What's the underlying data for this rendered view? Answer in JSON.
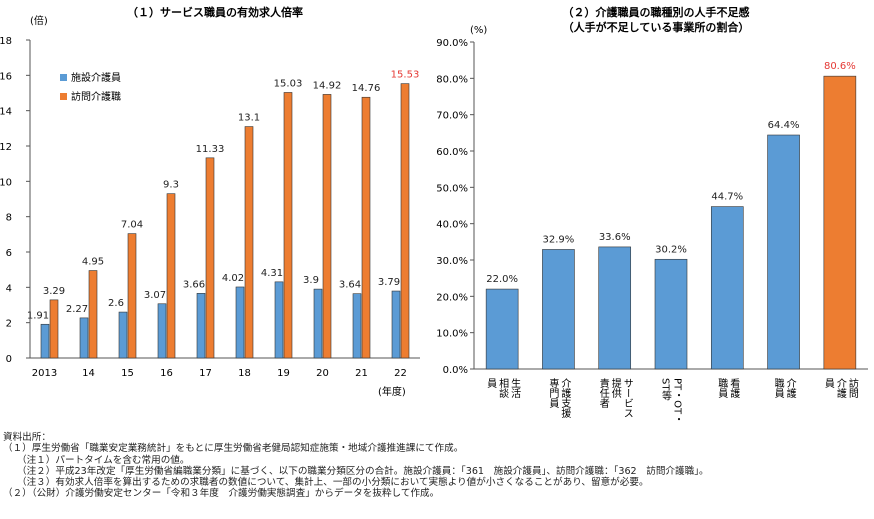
{
  "chart_data": [
    {
      "type": "bar",
      "title": "（１）サービス職員の有効求人倍率",
      "ylabel": "(倍)",
      "xlabel": "(年度)",
      "ylim": [
        0,
        18
      ],
      "yticks": [
        0,
        2,
        4,
        6,
        8,
        10,
        12,
        14,
        16,
        18
      ],
      "categories": [
        "2013",
        "14",
        "15",
        "16",
        "17",
        "18",
        "19",
        "20",
        "21",
        "22"
      ],
      "series": [
        {
          "name": "施設介護員",
          "color": "#5b9bd5",
          "values": [
            1.91,
            2.27,
            2.6,
            3.07,
            3.66,
            4.02,
            4.31,
            3.9,
            3.64,
            3.79
          ],
          "labels": [
            "1.91",
            "2.27",
            "2.6",
            "3.07",
            "3.66",
            "4.02",
            "4.31",
            "3.9",
            "3.64",
            "3.79"
          ]
        },
        {
          "name": "訪問介護職",
          "color": "#ed7d31",
          "values": [
            3.29,
            4.95,
            7.04,
            9.3,
            11.33,
            13.1,
            15.03,
            14.92,
            14.76,
            15.53
          ],
          "labels": [
            "3.29",
            "4.95",
            "7.04",
            "9.3",
            "11.33",
            "13.1",
            "15.03",
            "14.92",
            "14.76",
            "15.53"
          ]
        }
      ],
      "highlight_color": "#e53935",
      "legend": "top-left"
    },
    {
      "type": "bar",
      "title": "（２）介護職員の職種別の人手不足感",
      "subtitle": "（人手が不足している事業所の割合）",
      "ylabel": "(%)",
      "ylim": [
        0,
        90
      ],
      "yticks": [
        0,
        10,
        20,
        30,
        40,
        50,
        60,
        70,
        80,
        90
      ],
      "ytick_labels": [
        "0.0%",
        "10.0%",
        "20.0%",
        "30.0%",
        "40.0%",
        "50.0%",
        "60.0%",
        "70.0%",
        "80.0%",
        "90.0%"
      ],
      "categories": [
        "生活相談員",
        "介護支援専門員",
        "サービス提供責任者",
        "PT・OT・ST等",
        "看護職員",
        "介護職員",
        "訪問介護員"
      ],
      "category_lines": [
        [
          "生活",
          "相談",
          "員"
        ],
        [
          "介護支援",
          "専門員"
        ],
        [
          "サービス",
          "提供",
          "責任者"
        ],
        [
          "PT・OT・",
          "ST等"
        ],
        [
          "看護",
          "職員"
        ],
        [
          "介護",
          "職員"
        ],
        [
          "訪問",
          "介護",
          "員"
        ]
      ],
      "values": [
        22.0,
        32.9,
        33.6,
        30.2,
        44.7,
        64.4,
        80.6
      ],
      "labels": [
        "22.0%",
        "32.9%",
        "33.6%",
        "30.2%",
        "44.7%",
        "64.4%",
        "80.6%"
      ],
      "colors": [
        "#5b9bd5",
        "#5b9bd5",
        "#5b9bd5",
        "#5b9bd5",
        "#5b9bd5",
        "#5b9bd5",
        "#ed7d31"
      ],
      "highlight_label_color": "#e53935"
    }
  ],
  "notes": {
    "heading": "資料出所：",
    "items": [
      "（１）厚生労働省「職業安定業務統計」をもとに厚生労働省老健局認知症施策・地域介護推進課にて作成。",
      "（注１）パートタイムを含む常用の値。",
      "（注２）平成23年改定「厚生労働省編職業分類」に基づく、以下の職業分類区分の合計。施設介護員：「361　施設介護員」、訪問介護職：「362　訪問介護職」。",
      "（注３）有効求人倍率を算出するための求職者の数値について、集計上、一部の小分類において実態より値が小さくなることがあり、留意が必要。",
      "（２）（公財）介護労働安定センター「令和３年度　介護労働実態調査」からデータを抜粋して作成。"
    ]
  }
}
